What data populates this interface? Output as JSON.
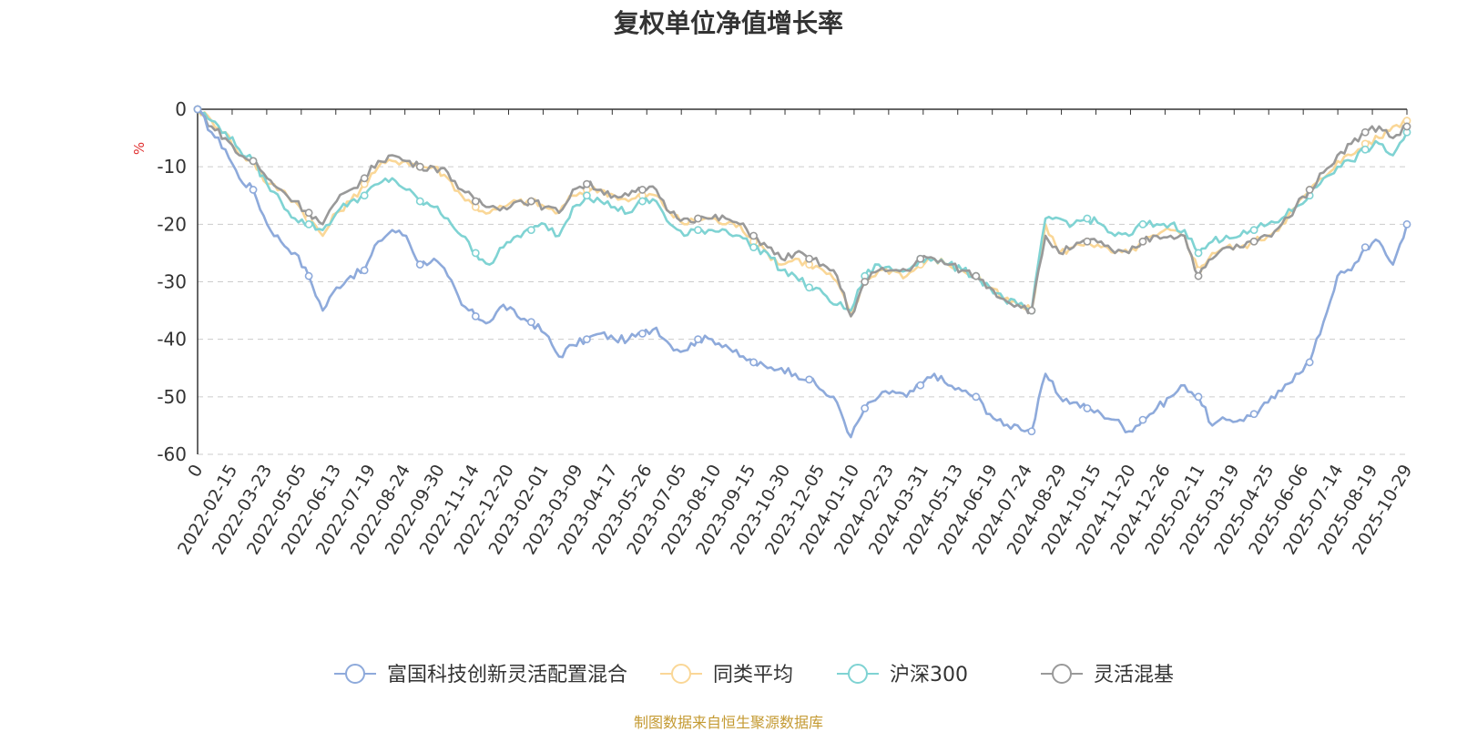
{
  "chart_data": {
    "type": "line",
    "title": "复权单位净值增长率",
    "ylabel": "%",
    "xlabel": "",
    "ylim": [
      -60,
      0
    ],
    "y_ticks": [
      0,
      -10,
      -20,
      -30,
      -40,
      -50,
      -60
    ],
    "x_tick_labels": [
      "0",
      "2022-02-15",
      "2022-03-23",
      "2022-05-05",
      "2022-06-13",
      "2022-07-19",
      "2022-08-24",
      "2022-09-30",
      "2022-11-14",
      "2022-12-20",
      "2023-02-01",
      "2023-03-09",
      "2023-04-17",
      "2023-05-26",
      "2023-07-05",
      "2023-08-10",
      "2023-09-15",
      "2023-10-30",
      "2023-12-05",
      "2024-01-10",
      "2024-02-23",
      "2024-03-31",
      "2024-05-13",
      "2024-06-19",
      "2024-07-24",
      "2024-08-29",
      "2024-10-15",
      "2024-11-20",
      "2024-12-26",
      "2025-02-11",
      "2025-03-19",
      "2025-04-25",
      "2025-06-06",
      "2025-07-14",
      "2025-08-19",
      "2025-10-29"
    ],
    "grid": true,
    "legend_position": "bottom",
    "source_note": "制图数据来自恒生聚源数据库",
    "series": [
      {
        "name": "富国科技创新灵活配置混合",
        "color": "#8eaadb",
        "values": [
          0,
          -4,
          -7,
          -12,
          -14,
          -20,
          -23,
          -25,
          -29,
          -35,
          -31,
          -29,
          -28,
          -23,
          -21,
          -22,
          -27,
          -26,
          -29,
          -34,
          -36,
          -37,
          -34,
          -36,
          -37,
          -39,
          -43,
          -41,
          -40,
          -39,
          -40,
          -40,
          -39,
          -38,
          -41,
          -42,
          -40,
          -40,
          -41,
          -43,
          -44,
          -45,
          -45,
          -46,
          -47,
          -49,
          -51,
          -57,
          -52,
          -50,
          -49,
          -50,
          -48,
          -46,
          -48,
          -49,
          -50,
          -53,
          -55,
          -55,
          -56,
          -46,
          -50,
          -51,
          -52,
          -53,
          -54,
          -56,
          -54,
          -52,
          -50,
          -48,
          -50,
          -55,
          -54,
          -54,
          -53,
          -51,
          -49,
          -46,
          -44,
          -37,
          -29,
          -28,
          -24,
          -23,
          -27,
          -20
        ]
      },
      {
        "name": "同类平均",
        "color": "#fad797",
        "values": [
          0,
          -2,
          -4,
          -8,
          -9,
          -13,
          -14,
          -16,
          -19,
          -22,
          -18,
          -16,
          -13,
          -10,
          -9,
          -9,
          -10,
          -10,
          -12,
          -15,
          -17,
          -18,
          -17,
          -16,
          -16,
          -17,
          -18,
          -15,
          -14,
          -14,
          -15,
          -16,
          -15,
          -15,
          -18,
          -20,
          -19,
          -19,
          -20,
          -20,
          -23,
          -25,
          -27,
          -26,
          -27,
          -28,
          -30,
          -36,
          -30,
          -28,
          -28,
          -29,
          -27,
          -26,
          -27,
          -28,
          -29,
          -31,
          -33,
          -34,
          -35,
          -20,
          -25,
          -24,
          -23,
          -24,
          -25,
          -25,
          -23,
          -22,
          -21,
          -22,
          -28,
          -25,
          -24,
          -24,
          -23,
          -22,
          -20,
          -17,
          -14,
          -12,
          -9,
          -8,
          -6,
          -5,
          -3,
          -2
        ]
      },
      {
        "name": "沪深300",
        "color": "#7fd3d3",
        "values": [
          0,
          -2,
          -4,
          -7,
          -9,
          -13,
          -16,
          -19,
          -20,
          -21,
          -18,
          -16,
          -15,
          -13,
          -12,
          -14,
          -16,
          -17,
          -19,
          -22,
          -25,
          -27,
          -24,
          -22,
          -21,
          -20,
          -22,
          -17,
          -15,
          -16,
          -17,
          -18,
          -16,
          -16,
          -20,
          -22,
          -21,
          -21,
          -21,
          -22,
          -24,
          -25,
          -28,
          -29,
          -31,
          -32,
          -34,
          -35,
          -29,
          -27,
          -28,
          -28,
          -26,
          -26,
          -27,
          -28,
          -29,
          -31,
          -33,
          -34,
          -35,
          -19,
          -19,
          -20,
          -19,
          -20,
          -22,
          -22,
          -20,
          -20,
          -20,
          -21,
          -25,
          -23,
          -22,
          -22,
          -21,
          -20,
          -19,
          -17,
          -15,
          -12,
          -10,
          -9,
          -7,
          -6,
          -8,
          -4
        ]
      },
      {
        "name": "灵活混基",
        "color": "#999999",
        "values": [
          0,
          -3,
          -5,
          -8,
          -9,
          -12,
          -14,
          -16,
          -18,
          -20,
          -16,
          -14,
          -12,
          -9,
          -8,
          -9,
          -10,
          -10,
          -11,
          -14,
          -16,
          -17,
          -17,
          -16,
          -16,
          -17,
          -18,
          -14,
          -13,
          -14,
          -15,
          -15,
          -14,
          -14,
          -18,
          -19,
          -19,
          -19,
          -19,
          -20,
          -22,
          -24,
          -26,
          -25,
          -26,
          -27,
          -29,
          -36,
          -30,
          -28,
          -28,
          -28,
          -26,
          -26,
          -27,
          -28,
          -29,
          -31,
          -33,
          -34,
          -35,
          -22,
          -25,
          -24,
          -23,
          -23,
          -25,
          -25,
          -23,
          -22,
          -22,
          -22,
          -29,
          -26,
          -24,
          -24,
          -23,
          -22,
          -20,
          -17,
          -14,
          -11,
          -8,
          -6,
          -4,
          -3,
          -5,
          -3
        ]
      }
    ]
  }
}
